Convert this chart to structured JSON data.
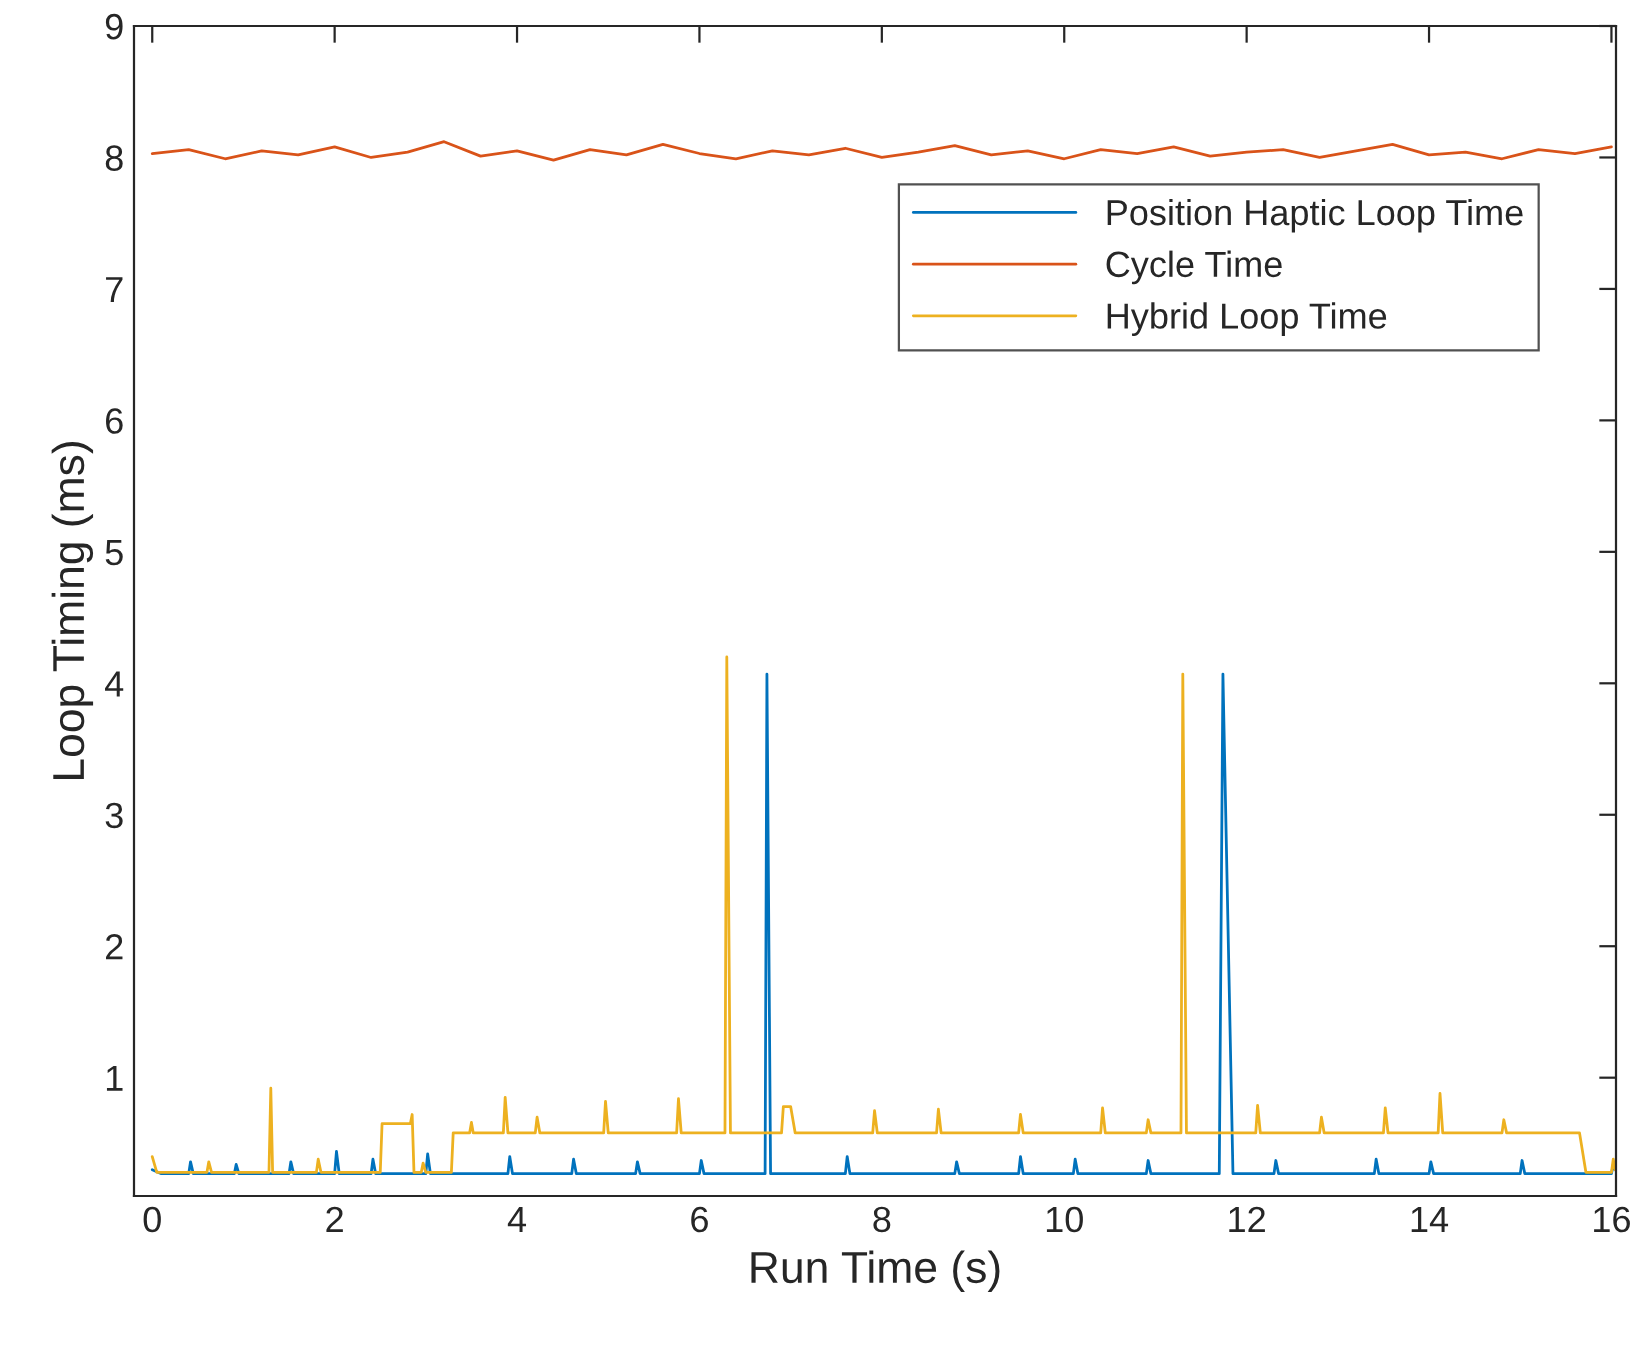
{
  "chart_data": {
    "type": "line",
    "xlabel": "Run Time (s)",
    "ylabel": "Loop Timing (ms)",
    "xlim": [
      -0.2,
      16.05
    ],
    "ylim": [
      0.1,
      9
    ],
    "xticks": [
      0,
      2,
      4,
      6,
      8,
      10,
      12,
      14,
      16
    ],
    "yticks": [
      1,
      2,
      3,
      4,
      5,
      6,
      7,
      8,
      9
    ],
    "grid": false,
    "legend": "top right",
    "marker": "none",
    "line_style": "solid",
    "series": [
      {
        "name": "Position Haptic Loop Time",
        "color": "#0072bd",
        "x": [
          0,
          0.1,
          0.4,
          0.42,
          0.45,
          0.9,
          0.92,
          0.95,
          1.5,
          1.52,
          1.55,
          2.0,
          2.02,
          2.05,
          2.4,
          2.42,
          2.45,
          3.0,
          3.02,
          3.05,
          3.9,
          3.92,
          3.95,
          4.6,
          4.62,
          4.65,
          5.3,
          5.32,
          5.35,
          6.0,
          6.02,
          6.05,
          6.72,
          6.74,
          6.76,
          6.78,
          7.6,
          7.62,
          7.65,
          8.8,
          8.82,
          8.85,
          9.5,
          9.52,
          9.55,
          10.1,
          10.12,
          10.15,
          10.9,
          10.92,
          10.95,
          11.7,
          11.72,
          11.74,
          11.76,
          11.85,
          12.3,
          12.32,
          12.35,
          13.4,
          13.42,
          13.45,
          14.0,
          14.02,
          14.05,
          15.0,
          15.02,
          15.05,
          15.7,
          16.0,
          16.02,
          16.04
        ],
        "values": [
          0.3,
          0.27,
          0.27,
          0.36,
          0.27,
          0.27,
          0.34,
          0.27,
          0.27,
          0.36,
          0.27,
          0.27,
          0.44,
          0.27,
          0.27,
          0.38,
          0.27,
          0.27,
          0.42,
          0.27,
          0.27,
          0.4,
          0.27,
          0.27,
          0.38,
          0.27,
          0.27,
          0.36,
          0.27,
          0.27,
          0.37,
          0.27,
          0.27,
          4.07,
          null,
          0.27,
          0.27,
          0.4,
          0.27,
          0.27,
          0.36,
          0.27,
          0.27,
          0.4,
          0.27,
          0.27,
          0.38,
          0.27,
          0.27,
          0.37,
          0.27,
          0.27,
          null,
          4.07,
          null,
          0.27,
          0.27,
          0.37,
          0.27,
          0.27,
          0.38,
          0.27,
          0.27,
          0.36,
          0.27,
          0.27,
          0.37,
          0.27,
          0.27,
          0.27,
          0.34,
          0.3
        ]
      },
      {
        "name": "Cycle Time",
        "color": "#d95319",
        "x": [
          0,
          0.4,
          0.8,
          1.2,
          1.6,
          2.0,
          2.4,
          2.8,
          3.2,
          3.6,
          4.0,
          4.4,
          4.8,
          5.2,
          5.6,
          6.0,
          6.4,
          6.8,
          7.2,
          7.6,
          8.0,
          8.4,
          8.8,
          9.2,
          9.6,
          10.0,
          10.4,
          10.8,
          11.2,
          11.6,
          12.0,
          12.4,
          12.8,
          13.2,
          13.6,
          14.0,
          14.4,
          14.8,
          15.2,
          15.6,
          16.0
        ],
        "values": [
          8.03,
          8.06,
          7.99,
          8.05,
          8.02,
          8.08,
          8.0,
          8.04,
          8.12,
          8.01,
          8.05,
          7.98,
          8.06,
          8.02,
          8.1,
          8.03,
          7.99,
          8.05,
          8.02,
          8.07,
          8.0,
          8.04,
          8.09,
          8.02,
          8.05,
          7.99,
          8.06,
          8.03,
          8.08,
          8.01,
          8.04,
          8.06,
          8.0,
          8.05,
          8.1,
          8.02,
          8.04,
          7.99,
          8.06,
          8.03,
          8.08
        ]
      },
      {
        "name": "Hybrid Loop Time",
        "color": "#edb120",
        "x": [
          0,
          0.05,
          0.6,
          0.62,
          0.65,
          1.28,
          1.3,
          1.32,
          1.8,
          1.82,
          1.85,
          2.5,
          2.52,
          2.83,
          2.85,
          2.87,
          2.95,
          2.97,
          3.0,
          3.28,
          3.3,
          3.48,
          3.5,
          3.52,
          3.85,
          3.87,
          3.9,
          4.2,
          4.22,
          4.25,
          4.95,
          4.97,
          5.0,
          5.75,
          5.77,
          5.8,
          6.28,
          6.3,
          6.32,
          6.34,
          6.9,
          6.92,
          7.0,
          7.05,
          7.9,
          7.92,
          7.95,
          8.6,
          8.62,
          8.65,
          9.5,
          9.52,
          9.55,
          10.4,
          10.42,
          10.45,
          10.9,
          10.92,
          10.95,
          11.28,
          11.3,
          11.32,
          11.34,
          12.1,
          12.12,
          12.15,
          12.8,
          12.82,
          12.85,
          13.5,
          13.52,
          13.55,
          14.1,
          14.12,
          14.15,
          14.8,
          14.82,
          14.85,
          15.6,
          15.65,
          15.72,
          16.0,
          16.02,
          16.04
        ],
        "values": [
          0.4,
          0.28,
          0.28,
          0.36,
          0.28,
          0.28,
          0.92,
          0.28,
          0.28,
          0.38,
          0.28,
          0.28,
          0.65,
          0.65,
          0.72,
          0.28,
          0.28,
          0.35,
          0.28,
          0.28,
          0.58,
          0.58,
          0.66,
          0.58,
          0.58,
          0.85,
          0.58,
          0.58,
          0.7,
          0.58,
          0.58,
          0.82,
          0.58,
          0.58,
          0.84,
          0.58,
          0.58,
          4.2,
          null,
          0.58,
          0.58,
          0.78,
          0.78,
          0.58,
          0.58,
          0.75,
          0.58,
          0.58,
          0.76,
          0.58,
          0.58,
          0.72,
          0.58,
          0.58,
          0.77,
          0.58,
          0.58,
          0.68,
          0.58,
          0.58,
          4.07,
          null,
          0.58,
          0.58,
          0.79,
          0.58,
          0.58,
          0.7,
          0.58,
          0.58,
          0.77,
          0.58,
          0.58,
          0.88,
          0.58,
          0.58,
          0.68,
          0.58,
          0.58,
          0.58,
          0.28,
          0.28,
          0.38,
          0.3
        ]
      }
    ]
  }
}
